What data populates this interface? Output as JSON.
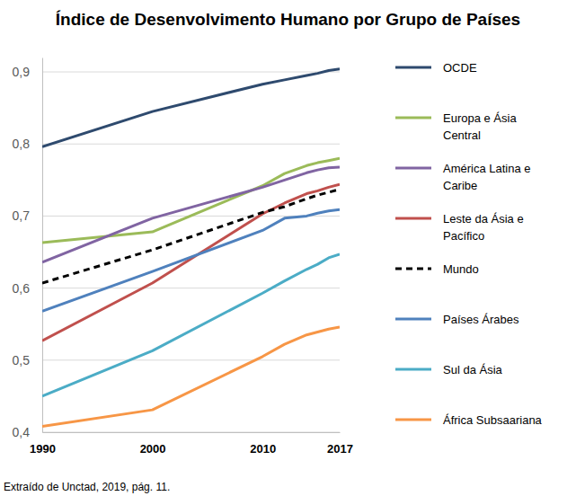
{
  "chart_data": {
    "type": "line",
    "title": "Índice de Desenvolvimento Humano por Grupo de Países",
    "note": "Extraído de Unctad, 2019, pág. 11.",
    "x": [
      1990,
      2000,
      2010,
      2012,
      2014,
      2015,
      2016,
      2017
    ],
    "xlim": [
      1990,
      2017
    ],
    "xticks": [
      1990,
      2000,
      2010,
      2017
    ],
    "ylim": [
      0.4,
      0.92
    ],
    "yticks": [
      {
        "value": 0.4,
        "label": "0,4"
      },
      {
        "value": 0.5,
        "label": "0,5"
      },
      {
        "value": 0.6,
        "label": "0,6"
      },
      {
        "value": 0.7,
        "label": "0,7"
      },
      {
        "value": 0.8,
        "label": "0,8"
      },
      {
        "value": 0.9,
        "label": "0,9"
      }
    ],
    "grid": true,
    "legend": "right",
    "series": [
      {
        "name": "OCDE",
        "color": "#2e4a6e",
        "line_style": "solid",
        "values": [
          0.796,
          0.845,
          0.883,
          0.889,
          0.895,
          0.898,
          0.902,
          0.904
        ]
      },
      {
        "name": "Europa e Ásia Central",
        "color": "#9bbb59",
        "line_style": "solid",
        "values": [
          0.663,
          0.678,
          0.742,
          0.759,
          0.77,
          0.774,
          0.777,
          0.78
        ]
      },
      {
        "name": "América Latina e Caribe",
        "color": "#8064a2",
        "line_style": "solid",
        "values": [
          0.636,
          0.697,
          0.74,
          0.75,
          0.76,
          0.764,
          0.767,
          0.768
        ]
      },
      {
        "name": "Leste da Ásia e Pacífico",
        "color": "#c0504d",
        "line_style": "solid",
        "values": [
          0.527,
          0.607,
          0.703,
          0.718,
          0.731,
          0.735,
          0.74,
          0.744
        ]
      },
      {
        "name": "Mundo",
        "color": "#000000",
        "line_style": "dashed",
        "values": [
          0.607,
          0.653,
          0.705,
          0.713,
          0.724,
          0.729,
          0.733,
          0.737
        ]
      },
      {
        "name": "Países Árabes",
        "color": "#4f81bd",
        "line_style": "solid",
        "values": [
          0.568,
          0.623,
          0.68,
          0.697,
          0.7,
          0.704,
          0.707,
          0.709
        ]
      },
      {
        "name": "Sul da Ásia",
        "color": "#4bacc6",
        "line_style": "solid",
        "values": [
          0.45,
          0.513,
          0.593,
          0.61,
          0.626,
          0.633,
          0.642,
          0.647
        ]
      },
      {
        "name": "África Subsaariana",
        "color": "#f79646",
        "line_style": "solid",
        "values": [
          0.408,
          0.431,
          0.505,
          0.522,
          0.535,
          0.539,
          0.543,
          0.546
        ]
      }
    ]
  }
}
